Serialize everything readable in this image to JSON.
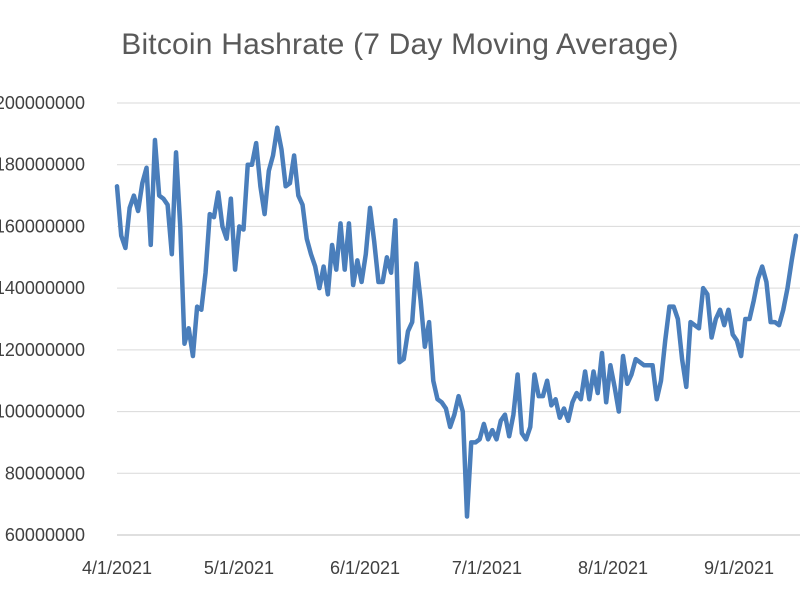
{
  "chart_data": {
    "type": "line",
    "title": "Bitcoin Hashrate (7 Day Moving Average)",
    "xlabel": "",
    "ylabel": "",
    "x_start": "2021-04-01",
    "x_end": "2021-09-15",
    "xlim": [
      "2021-04-01",
      "2021-09-16"
    ],
    "x_ticks": [
      {
        "date": "2021-04-01",
        "label": "4/1/2021"
      },
      {
        "date": "2021-05-01",
        "label": "5/1/2021"
      },
      {
        "date": "2021-06-01",
        "label": "6/1/2021"
      },
      {
        "date": "2021-07-01",
        "label": "7/1/2021"
      },
      {
        "date": "2021-08-01",
        "label": "8/1/2021"
      },
      {
        "date": "2021-09-01",
        "label": "9/1/2021"
      }
    ],
    "ylim": [
      60000000,
      200000000
    ],
    "y_ticks": [
      {
        "value": 60000000,
        "label": "60000000"
      },
      {
        "value": 80000000,
        "label": "80000000"
      },
      {
        "value": 100000000,
        "label": "100000000"
      },
      {
        "value": 120000000,
        "label": "120000000"
      },
      {
        "value": 140000000,
        "label": "140000000"
      },
      {
        "value": 160000000,
        "label": "160000000"
      },
      {
        "value": 180000000,
        "label": "180000000"
      },
      {
        "value": 200000000,
        "label": "200000000"
      }
    ],
    "grid": true,
    "legend": "none",
    "series": [
      {
        "color": "#4A7EBB",
        "values": [
          173000000,
          157000000,
          153000000,
          166000000,
          170000000,
          165000000,
          174000000,
          179000000,
          154000000,
          188000000,
          170000000,
          169000000,
          167000000,
          151000000,
          184000000,
          160000000,
          122000000,
          127000000,
          118000000,
          134000000,
          133000000,
          145000000,
          164000000,
          163000000,
          171000000,
          160000000,
          156000000,
          169000000,
          146000000,
          160000000,
          159000000,
          180000000,
          180000000,
          187000000,
          173000000,
          164000000,
          178000000,
          183000000,
          192000000,
          185000000,
          173000000,
          174000000,
          183000000,
          170000000,
          167000000,
          156000000,
          151000000,
          147000000,
          140000000,
          147000000,
          138000000,
          154000000,
          146000000,
          161000000,
          146000000,
          161000000,
          141000000,
          149000000,
          142000000,
          151000000,
          166000000,
          155000000,
          142000000,
          142000000,
          150000000,
          145000000,
          162000000,
          116000000,
          117000000,
          126000000,
          129000000,
          148000000,
          136000000,
          121000000,
          129000000,
          110000000,
          104000000,
          103000000,
          101000000,
          95000000,
          99000000,
          105000000,
          100000000,
          66000000,
          90000000,
          90000000,
          91000000,
          96000000,
          91000000,
          94000000,
          91000000,
          97000000,
          99000000,
          92000000,
          99000000,
          112000000,
          93000000,
          91000000,
          95000000,
          112000000,
          105000000,
          105000000,
          110000000,
          102000000,
          104000000,
          98000000,
          101000000,
          97000000,
          103000000,
          106000000,
          104000000,
          113000000,
          104000000,
          113000000,
          106000000,
          119000000,
          103000000,
          115000000,
          108000000,
          100000000,
          118000000,
          109000000,
          112000000,
          117000000,
          116000000,
          115000000,
          115000000,
          115000000,
          104000000,
          110000000,
          123000000,
          134000000,
          134000000,
          130000000,
          117000000,
          108000000,
          129000000,
          128000000,
          127000000,
          140000000,
          138000000,
          124000000,
          130000000,
          133000000,
          128000000,
          133000000,
          125000000,
          123000000,
          118000000,
          130000000,
          130000000,
          136000000,
          143000000,
          147000000,
          142000000,
          129000000,
          129000000,
          128000000,
          133000000,
          140000000,
          149000000,
          157000000
        ]
      }
    ]
  }
}
